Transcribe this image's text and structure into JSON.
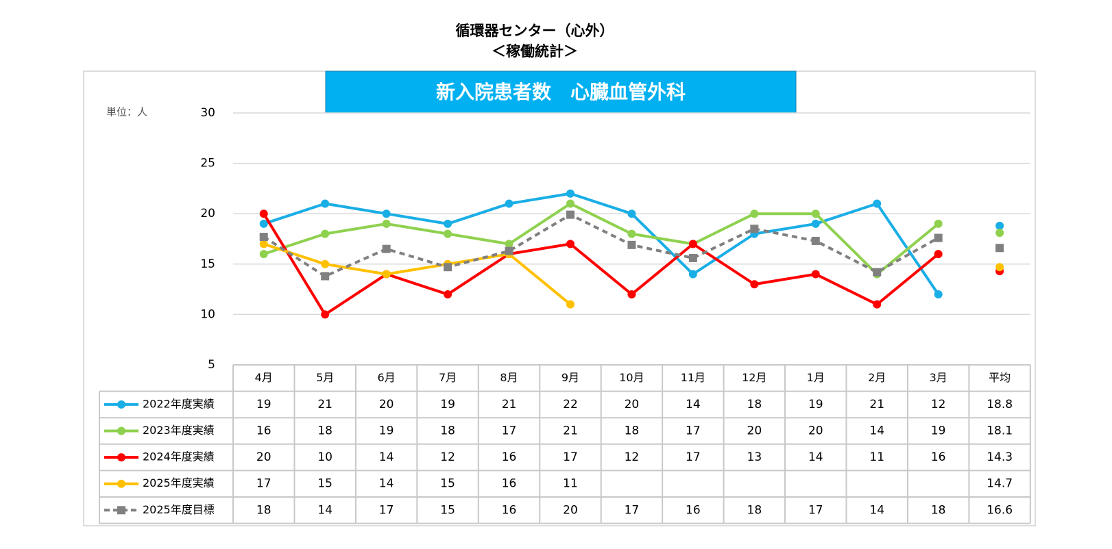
{
  "chart_data": {
    "type": "line",
    "title": "循環器センター（心外）",
    "subtitle": "＜稼働統計＞",
    "chart_title": "新入院患者数　心臓血管外科",
    "unit_label": "単位：人",
    "categories": [
      "4月",
      "5月",
      "6月",
      "7月",
      "8月",
      "9月",
      "10月",
      "11月",
      "12月",
      "1月",
      "2月",
      "3月"
    ],
    "average_label": "平均",
    "ylim": [
      5,
      30
    ],
    "yticks": [
      5,
      10,
      15,
      20,
      25,
      30
    ],
    "grid": true,
    "series": [
      {
        "name": "2022年度実績",
        "color": "#1aaee6",
        "marker": "circle",
        "dashed": false,
        "values": [
          19,
          21,
          20,
          19,
          21,
          22,
          20,
          14,
          18,
          19,
          21,
          12
        ],
        "average": 18.8
      },
      {
        "name": "2023年度実績",
        "color": "#8fd14f",
        "marker": "circle",
        "dashed": false,
        "values": [
          16,
          18,
          19,
          18,
          17,
          21,
          18,
          17,
          20,
          20,
          14,
          19
        ],
        "average": 18.1
      },
      {
        "name": "2024年度実績",
        "color": "#ff0000",
        "marker": "circle",
        "dashed": false,
        "values": [
          20,
          10,
          14,
          12,
          16,
          17,
          12,
          17,
          13,
          14,
          11,
          16
        ],
        "average": 14.3
      },
      {
        "name": "2025年度実績",
        "color": "#ffc000",
        "marker": "circle",
        "dashed": false,
        "values": [
          17,
          15,
          14,
          15,
          16,
          11,
          null,
          null,
          null,
          null,
          null,
          null
        ],
        "average": 14.7
      },
      {
        "name": "2025年度目標",
        "color": "#808080",
        "marker": "square",
        "dashed": true,
        "values": [
          17.7,
          13.8,
          16.5,
          14.7,
          16.3,
          19.9,
          16.9,
          15.6,
          18.5,
          17.3,
          14.2,
          17.6
        ],
        "value_labels": [
          "18",
          "14",
          "17",
          "15",
          "16",
          "20",
          "17",
          "16",
          "18",
          "17",
          "14",
          "18"
        ],
        "average": 16.6
      }
    ]
  }
}
